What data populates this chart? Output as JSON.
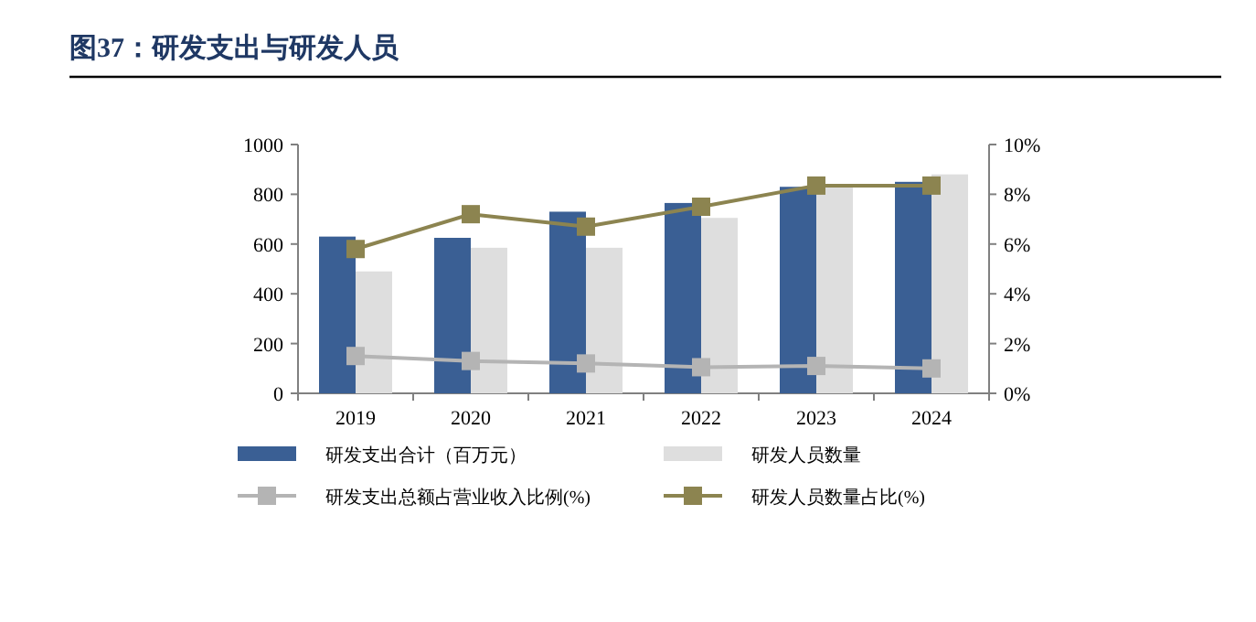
{
  "chart_data": {
    "type": "bar",
    "title": "图37：研发支出与研发人员",
    "categories": [
      "2019",
      "2020",
      "2021",
      "2022",
      "2023",
      "2024"
    ],
    "series": [
      {
        "name": "研发支出合计（百万元）",
        "color": "#3a5f94",
        "values": [
          630,
          625,
          730,
          765,
          830,
          850
        ]
      },
      {
        "name": "研发人员数量",
        "color": "#dedede",
        "values": [
          490,
          585,
          585,
          705,
          840,
          880
        ]
      },
      {
        "name": "研发支出总额占营业收入比例(%)",
        "type": "line",
        "axis": "y2",
        "color": "#b4b4b4",
        "values": [
          1.5,
          1.3,
          1.2,
          1.05,
          1.1,
          1.0
        ]
      },
      {
        "name": "研发人员数量占比(%)",
        "type": "line",
        "axis": "y2",
        "color": "#8c8450",
        "values": [
          5.8,
          7.2,
          6.7,
          7.5,
          8.35,
          8.35
        ]
      }
    ],
    "ylim": [
      0,
      1000
    ],
    "yticks": [
      0,
      200,
      400,
      600,
      800,
      1000
    ],
    "y2lim": [
      0,
      10
    ],
    "y2ticks": [
      {
        "value": 0,
        "label": "0%"
      },
      {
        "value": 2,
        "label": "2%"
      },
      {
        "value": 4,
        "label": "4%"
      },
      {
        "value": 6,
        "label": "6%"
      },
      {
        "value": 8,
        "label": "8%"
      },
      {
        "value": 10,
        "label": "10%"
      }
    ],
    "marker": "square",
    "legend": "bottom"
  }
}
